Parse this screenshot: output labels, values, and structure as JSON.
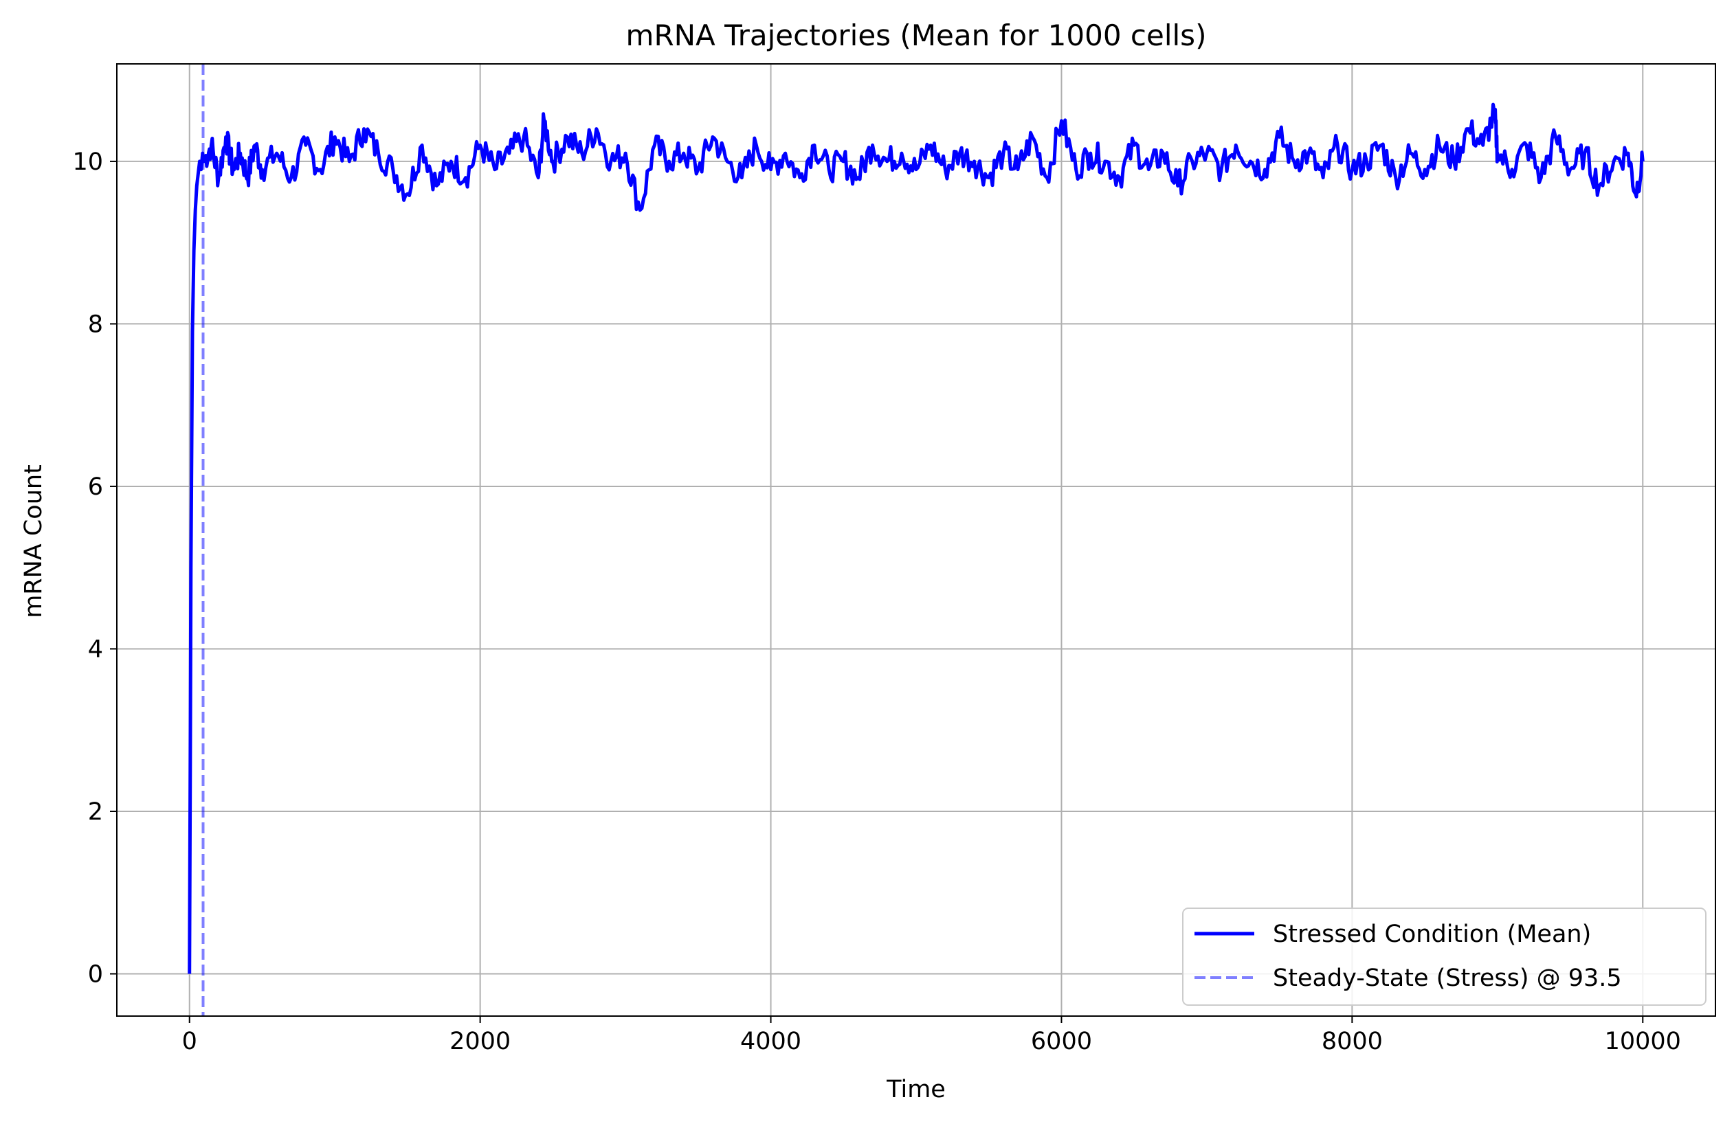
{
  "chart_data": {
    "type": "line",
    "title": "mRNA Trajectories (Mean for 1000 cells)",
    "xlabel": "Time",
    "ylabel": "mRNA Count",
    "xlim": [
      -500,
      10500
    ],
    "ylim": [
      -0.52,
      11.2
    ],
    "xticks": [
      0,
      2000,
      4000,
      6000,
      8000,
      10000
    ],
    "xtick_labels": [
      "0",
      "2000",
      "4000",
      "6000",
      "8000",
      "10000"
    ],
    "yticks": [
      0,
      2,
      4,
      6,
      8,
      10
    ],
    "ytick_labels": [
      "0",
      "2",
      "4",
      "6",
      "8",
      "10"
    ],
    "grid": true,
    "legend_position": "lower-right",
    "series": [
      {
        "name": "Stressed Condition (Mean)",
        "color": "#0000ff",
        "style": "solid",
        "x": [
          0,
          5,
          10,
          20,
          30,
          40,
          50,
          60,
          70,
          80,
          90,
          100,
          150,
          200,
          250,
          300,
          350,
          400,
          450,
          500,
          600,
          700,
          800,
          900,
          1000,
          1100,
          1200,
          1300,
          1400,
          1500,
          1600,
          1700,
          1800,
          1900,
          2000,
          2100,
          2200,
          2300,
          2400,
          2440,
          2500,
          2600,
          2700,
          2800,
          2900,
          3000,
          3100,
          3200,
          3300,
          3400,
          3500,
          3600,
          3700,
          3800,
          3900,
          4000,
          4100,
          4200,
          4300,
          4400,
          4500,
          4600,
          4700,
          4800,
          4900,
          5000,
          5100,
          5200,
          5300,
          5400,
          5500,
          5600,
          5700,
          5800,
          5900,
          6000,
          6100,
          6200,
          6300,
          6400,
          6500,
          6600,
          6700,
          6800,
          6900,
          7000,
          7100,
          7200,
          7300,
          7400,
          7500,
          7600,
          7700,
          7800,
          7900,
          8000,
          8100,
          8200,
          8300,
          8400,
          8500,
          8600,
          8700,
          8800,
          8900,
          8980,
          9000,
          9100,
          9200,
          9300,
          9400,
          9500,
          9600,
          9700,
          9800,
          9900,
          9950,
          10000
        ],
        "y": [
          0,
          2.5,
          5.0,
          7.9,
          8.9,
          9.4,
          9.7,
          9.85,
          10.0,
          9.9,
          10.1,
          10.0,
          10.2,
          9.8,
          10.3,
          9.9,
          10.1,
          9.8,
          10.2,
          9.9,
          10.1,
          9.8,
          10.2,
          9.9,
          10.3,
          10.0,
          10.4,
          10.1,
          9.9,
          9.6,
          10.2,
          9.7,
          10.0,
          9.8,
          10.2,
          9.9,
          10.1,
          10.3,
          9.8,
          10.5,
          10.0,
          10.3,
          10.1,
          10.4,
          10.0,
          10.1,
          9.4,
          10.2,
          10.0,
          10.1,
          9.9,
          10.3,
          10.0,
          9.8,
          10.2,
          9.9,
          10.1,
          9.8,
          10.2,
          9.9,
          10.0,
          9.8,
          10.2,
          10.0,
          10.1,
          9.9,
          10.2,
          9.9,
          10.1,
          10.0,
          9.8,
          10.1,
          9.9,
          10.3,
          9.8,
          10.5,
          9.9,
          10.1,
          10.0,
          9.8,
          10.2,
          9.9,
          10.1,
          9.7,
          10.0,
          10.1,
          9.9,
          10.2,
          10.0,
          9.9,
          10.3,
          10.0,
          10.1,
          9.8,
          10.2,
          9.9,
          10.0,
          10.2,
          9.8,
          10.1,
          9.9,
          10.2,
          10.0,
          10.4,
          10.2,
          10.6,
          10.1,
          9.9,
          10.2,
          9.8,
          10.3,
          9.9,
          10.1,
          9.7,
          10.0,
          10.1,
          9.6,
          10.0
        ]
      },
      {
        "name": "Steady-State (Stress) @ 93.5",
        "color": "#0000ff",
        "alpha": 0.5,
        "style": "dashed",
        "x_value": 93.5
      }
    ]
  }
}
